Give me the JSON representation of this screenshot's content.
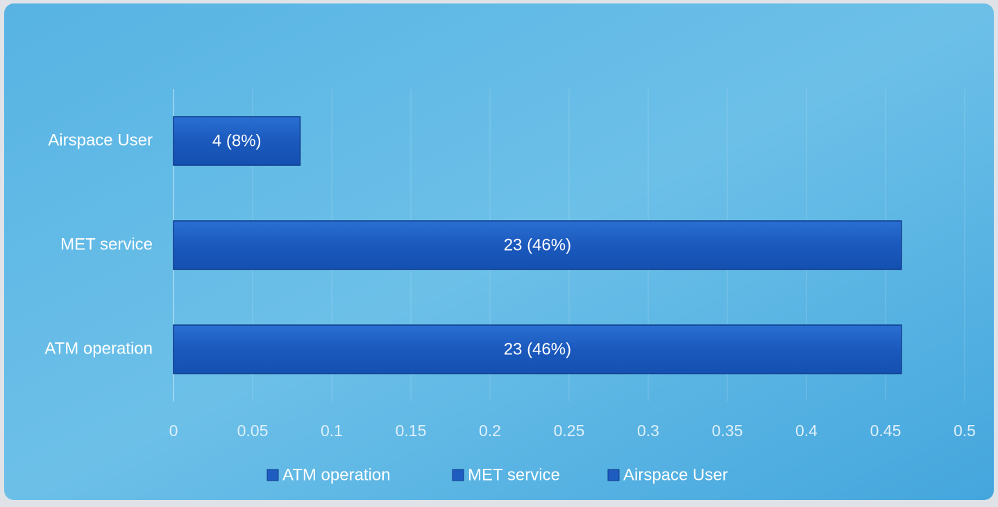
{
  "chart_data": {
    "type": "bar",
    "orientation": "horizontal",
    "categories": [
      "ATM operation",
      "MET service",
      "Airspace User"
    ],
    "series": [
      {
        "name": "ATM operation",
        "color": "#1e5cc0",
        "values": [
          0.46,
          null,
          null
        ],
        "value_labels": [
          "23 (46%)",
          null,
          null
        ]
      },
      {
        "name": "MET service",
        "color": "#1e5cc0",
        "values": [
          null,
          0.46,
          null
        ],
        "value_labels": [
          null,
          "23 (46%)",
          null
        ]
      },
      {
        "name": "Airspace User",
        "color": "#1e5cc0",
        "values": [
          null,
          null,
          0.08
        ],
        "value_labels": [
          null,
          null,
          "4 (8%)"
        ]
      }
    ],
    "xlim": [
      0,
      0.5
    ],
    "xticks": [
      0,
      0.05,
      0.1,
      0.15,
      0.2,
      0.25,
      0.3,
      0.35,
      0.4,
      0.45,
      0.5
    ],
    "grid": true,
    "legend": "bottom"
  }
}
